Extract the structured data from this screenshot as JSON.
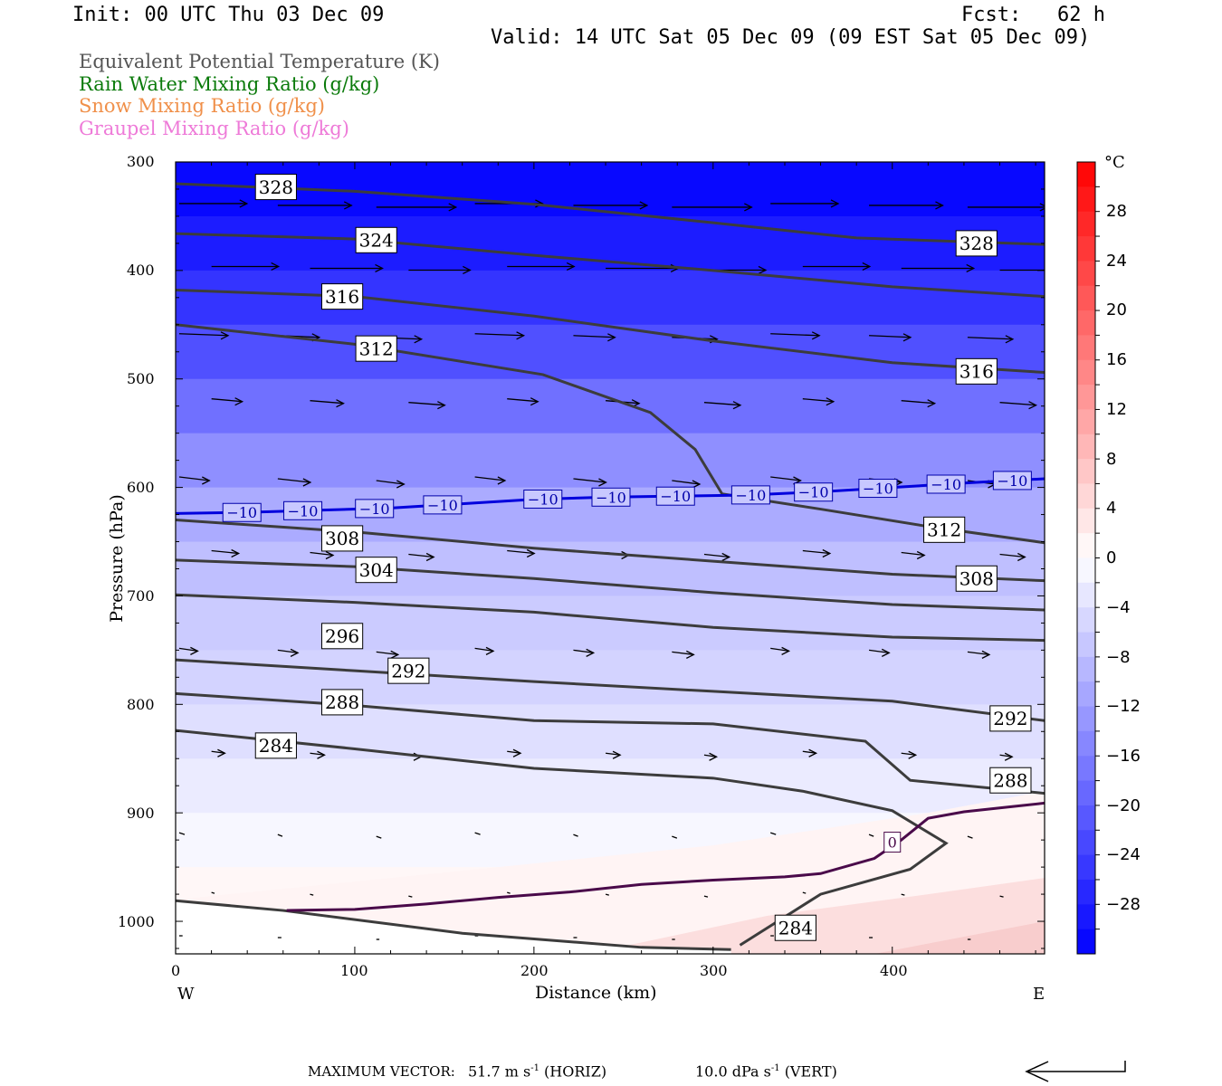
{
  "header": {
    "init": "Init: 00 UTC Thu 03 Dec 09",
    "fcst": "Fcst:   62 h",
    "valid": "Valid: 14 UTC Sat 05 Dec 09 (09 EST Sat 05 Dec 09)"
  },
  "legend": [
    {
      "label": "Equivalent Potential Temperature (K)",
      "color": "#555555"
    },
    {
      "label": "Rain Water Mixing Ratio (g/kg)",
      "color": "#0a7a0a"
    },
    {
      "label": "Snow Mixing Ratio (g/kg)",
      "color": "#f0904a"
    },
    {
      "label": "Graupel Mixing Ratio (g/kg)",
      "color": "#ee7ad8"
    }
  ],
  "footer": {
    "max_label": "MAXIMUM VECTOR:",
    "horiz_value": "51.7 m s",
    "horiz_exp": "-1",
    "horiz_tag": "(HORIZ)",
    "vert_value": "10.0 dPa s",
    "vert_exp": "-1",
    "vert_tag": "(VERT)"
  },
  "chart_data": {
    "type": "cross-section",
    "xlabel": "Distance (km)",
    "ylabel": "Pressure (hPa)",
    "xlim": [
      0,
      485
    ],
    "ylim": [
      1030,
      300
    ],
    "y_scale": "linear",
    "x_ticks": [
      0,
      100,
      200,
      300,
      400
    ],
    "y_ticks": [
      300,
      400,
      500,
      600,
      700,
      800,
      900,
      1000
    ],
    "x_end_labels": {
      "left": "W",
      "right": "E"
    },
    "colorbar": {
      "unit": "°C",
      "labels": [
        "28",
        "24",
        "20",
        "16",
        "12",
        "8",
        "4",
        "0",
        "−4",
        "−8",
        "−12",
        "−16",
        "−20",
        "−24",
        "−28"
      ],
      "range": [
        -32,
        32
      ],
      "interval": 2
    },
    "temperature_shading": {
      "units": "°C",
      "levels": [
        {
          "p": 300,
          "T": -32
        },
        {
          "p": 350,
          "T": -30
        },
        {
          "p": 400,
          "T": -27
        },
        {
          "p": 450,
          "T": -24
        },
        {
          "p": 500,
          "T": -20
        },
        {
          "p": 550,
          "T": -16
        },
        {
          "p": 600,
          "T": -12
        },
        {
          "p": 650,
          "T": -9
        },
        {
          "p": 700,
          "T": -7
        },
        {
          "p": 750,
          "T": -6
        },
        {
          "p": 800,
          "T": -5
        },
        {
          "p": 850,
          "T": -3
        },
        {
          "p": 900,
          "T": -2
        },
        {
          "p": 950,
          "T": 0
        },
        {
          "p": 1000,
          "T": 2
        },
        {
          "p": 1030,
          "T": 3
        }
      ]
    },
    "isotherm_minus10": {
      "label": "−10",
      "color": "#0000dd",
      "points": [
        [
          0,
          624
        ],
        [
          40,
          623
        ],
        [
          80,
          621
        ],
        [
          120,
          619
        ],
        [
          160,
          615
        ],
        [
          200,
          611
        ],
        [
          240,
          609
        ],
        [
          280,
          608
        ],
        [
          320,
          607
        ],
        [
          360,
          604
        ],
        [
          400,
          600
        ],
        [
          440,
          596
        ],
        [
          485,
          592
        ]
      ],
      "label_x": [
        37,
        71,
        111,
        149,
        205,
        243,
        279,
        321,
        356,
        392,
        430,
        467
      ]
    },
    "isotherm_zero": {
      "label": "0",
      "color": "#4a0a4a",
      "points": [
        [
          62,
          990
        ],
        [
          100,
          989
        ],
        [
          140,
          984
        ],
        [
          180,
          978
        ],
        [
          220,
          973
        ],
        [
          260,
          966
        ],
        [
          300,
          962
        ],
        [
          340,
          959
        ],
        [
          360,
          956
        ],
        [
          390,
          942
        ],
        [
          405,
          925
        ],
        [
          420,
          905
        ],
        [
          440,
          899
        ],
        [
          485,
          891
        ]
      ],
      "label_pt": [
        400,
        927
      ]
    },
    "theta_e_contours": [
      {
        "label": "328",
        "pts": [
          [
            0,
            320
          ],
          [
            100,
            327
          ],
          [
            200,
            339
          ],
          [
            300,
            356
          ],
          [
            380,
            370
          ],
          [
            485,
            376
          ]
        ],
        "labels": [
          [
            56,
            323
          ],
          [
            447,
            375
          ]
        ]
      },
      {
        "label": "324",
        "pts": [
          [
            0,
            366
          ],
          [
            100,
            371
          ],
          [
            200,
            386
          ],
          [
            300,
            400
          ],
          [
            400,
            415
          ],
          [
            485,
            424
          ]
        ],
        "labels": [
          [
            112,
            372
          ]
        ]
      },
      {
        "label": "316",
        "pts": [
          [
            0,
            418
          ],
          [
            100,
            424
          ],
          [
            200,
            442
          ],
          [
            300,
            465
          ],
          [
            400,
            485
          ],
          [
            485,
            494
          ]
        ],
        "labels": [
          [
            93,
            424
          ],
          [
            447,
            493
          ]
        ]
      },
      {
        "label": "312",
        "pts": [
          [
            0,
            450
          ],
          [
            100,
            468
          ],
          [
            205,
            496
          ],
          [
            265,
            531
          ],
          [
            290,
            565
          ],
          [
            305,
            606
          ],
          [
            360,
            620
          ],
          [
            420,
            636
          ],
          [
            485,
            651
          ]
        ],
        "labels": [
          [
            112,
            472
          ],
          [
            429,
            639
          ]
        ]
      },
      {
        "label": "308",
        "pts": [
          [
            0,
            630
          ],
          [
            100,
            641
          ],
          [
            200,
            656
          ],
          [
            300,
            668
          ],
          [
            400,
            680
          ],
          [
            485,
            686
          ]
        ],
        "labels": [
          [
            93,
            647
          ],
          [
            447,
            684
          ]
        ]
      },
      {
        "label": "304",
        "pts": [
          [
            0,
            667
          ],
          [
            100,
            673
          ],
          [
            200,
            684
          ],
          [
            300,
            697
          ],
          [
            400,
            708
          ],
          [
            485,
            713
          ]
        ],
        "labels": [
          [
            112,
            676
          ]
        ]
      },
      {
        "label": "296",
        "pts": [
          [
            0,
            699
          ],
          [
            100,
            706
          ],
          [
            200,
            715
          ],
          [
            300,
            729
          ],
          [
            400,
            738
          ],
          [
            485,
            741
          ]
        ],
        "labels": [
          [
            93,
            737
          ]
        ]
      },
      {
        "label": "292",
        "pts": [
          [
            0,
            759
          ],
          [
            100,
            769
          ],
          [
            200,
            779
          ],
          [
            300,
            788
          ],
          [
            400,
            797
          ],
          [
            485,
            815
          ]
        ],
        "labels": [
          [
            130,
            769
          ],
          [
            466,
            813
          ]
        ]
      },
      {
        "label": "288",
        "pts": [
          [
            0,
            790
          ],
          [
            100,
            801
          ],
          [
            200,
            815
          ],
          [
            300,
            818
          ],
          [
            385,
            834
          ],
          [
            410,
            870
          ],
          [
            485,
            882
          ]
        ],
        "labels": [
          [
            93,
            798
          ],
          [
            466,
            870
          ]
        ]
      },
      {
        "label": "284",
        "pts": [
          [
            0,
            824
          ],
          [
            100,
            841
          ],
          [
            200,
            859
          ],
          [
            300,
            868
          ],
          [
            350,
            880
          ],
          [
            400,
            898
          ],
          [
            430,
            928
          ],
          [
            410,
            952
          ],
          [
            360,
            975
          ],
          [
            315,
            1022
          ]
        ],
        "labels": [
          [
            56,
            838
          ],
          [
            346,
            1006
          ]
        ]
      },
      {
        "label": "",
        "pts": [
          [
            0,
            981
          ],
          [
            60,
            990
          ],
          [
            160,
            1011
          ],
          [
            260,
            1024
          ],
          [
            310,
            1026
          ]
        ],
        "labels": []
      }
    ],
    "wind_vectors_rows": [
      {
        "p": 340,
        "len": 88,
        "dy": 0
      },
      {
        "p": 398,
        "len": 80,
        "dy": 0
      },
      {
        "p": 460,
        "len": 54,
        "dy": 2
      },
      {
        "p": 520,
        "len": 40,
        "dy": 3
      },
      {
        "p": 592,
        "len": 36,
        "dy": 4
      },
      {
        "p": 660,
        "len": 30,
        "dy": 3
      },
      {
        "p": 750,
        "len": 24,
        "dy": 3
      },
      {
        "p": 845,
        "len": 16,
        "dy": 2
      },
      {
        "p": 920,
        "len": 6,
        "dy": 2
      },
      {
        "p": 975,
        "len": 4,
        "dy": 1
      },
      {
        "p": 1015,
        "len": 4,
        "dy": 0
      }
    ]
  }
}
